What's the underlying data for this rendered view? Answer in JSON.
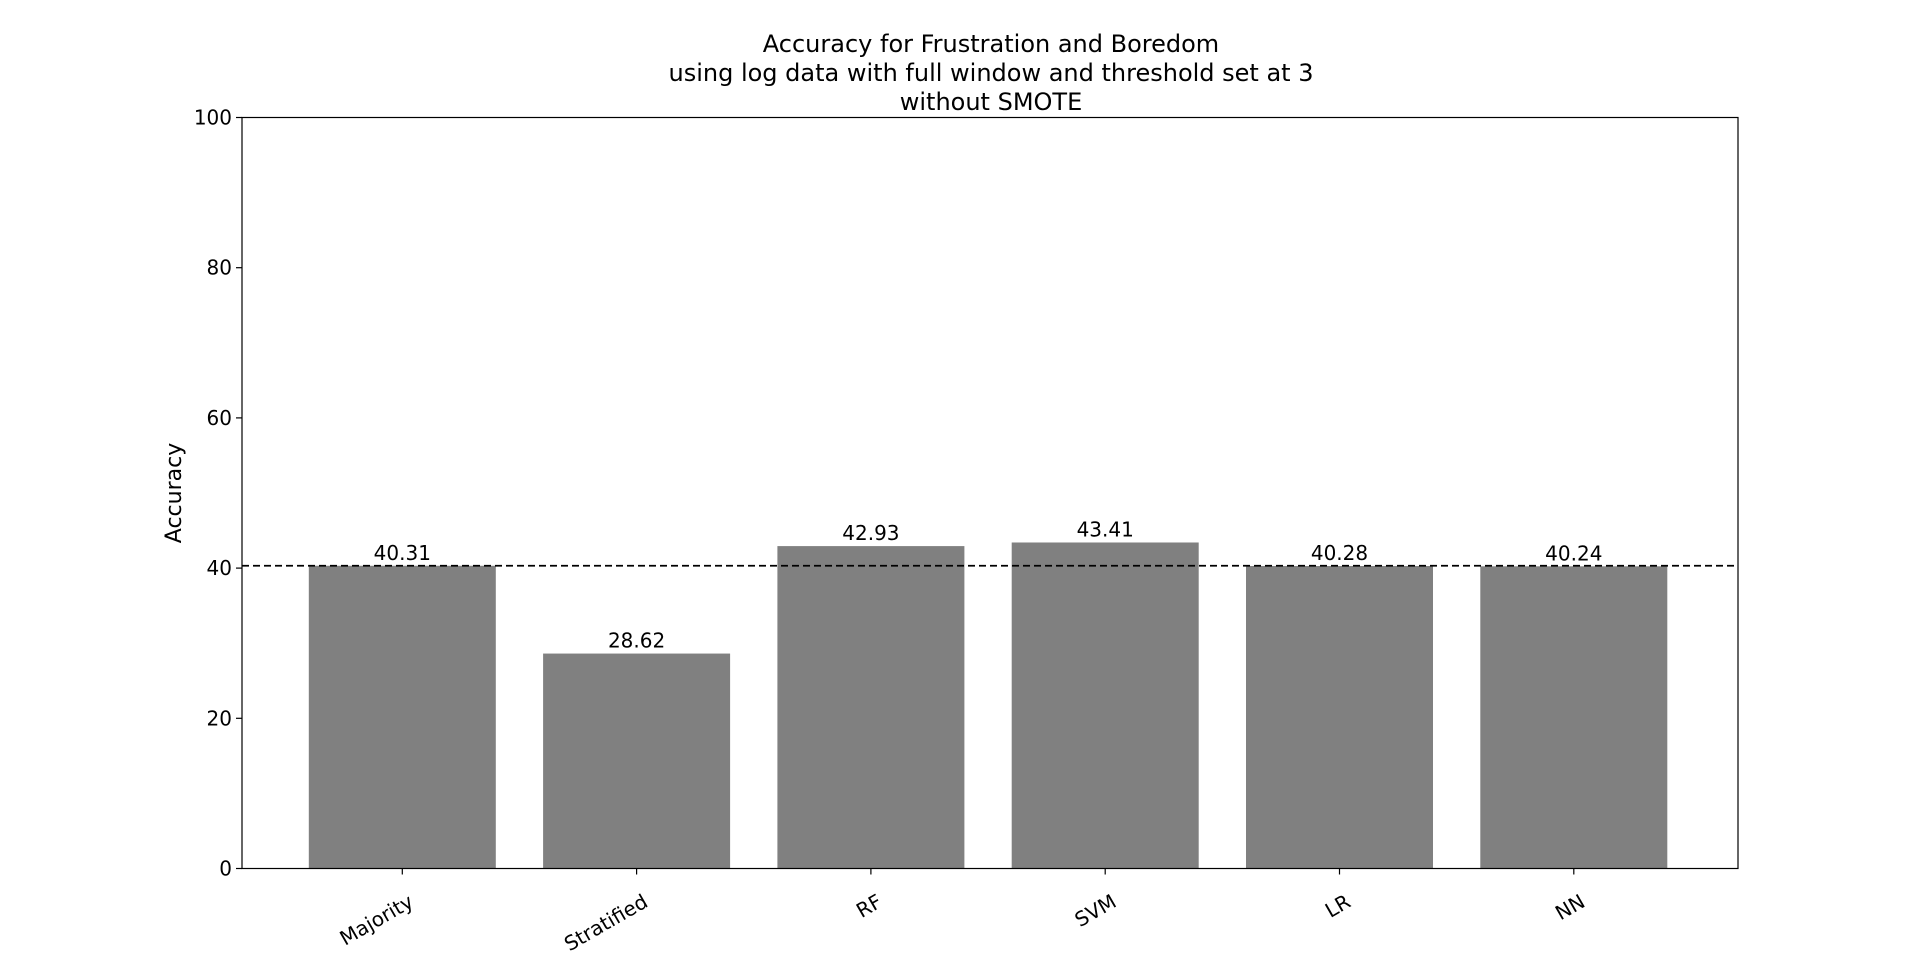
{
  "chart_data": {
    "type": "bar",
    "title": [
      "Accuracy for Frustration and Boredom",
      "using log data with full window and threshold set at 3",
      "without SMOTE"
    ],
    "xlabel": "",
    "ylabel": "Accuracy",
    "categories": [
      "Majority",
      "Stratified",
      "RF",
      "SVM",
      "LR",
      "NN"
    ],
    "values": [
      40.31,
      28.62,
      42.93,
      43.41,
      40.28,
      40.24
    ],
    "value_labels": [
      "40.31",
      "28.62",
      "42.93",
      "43.41",
      "40.28",
      "40.24"
    ],
    "ylim": [
      0,
      100
    ],
    "yticks": [
      0,
      20,
      40,
      60,
      80,
      100
    ],
    "bar_color": "#808080",
    "reference_line": {
      "value": 40.31,
      "style": "dashed",
      "color": "#000000"
    },
    "grid": false,
    "legend": "none",
    "xtick_rotation_deg": 30
  }
}
